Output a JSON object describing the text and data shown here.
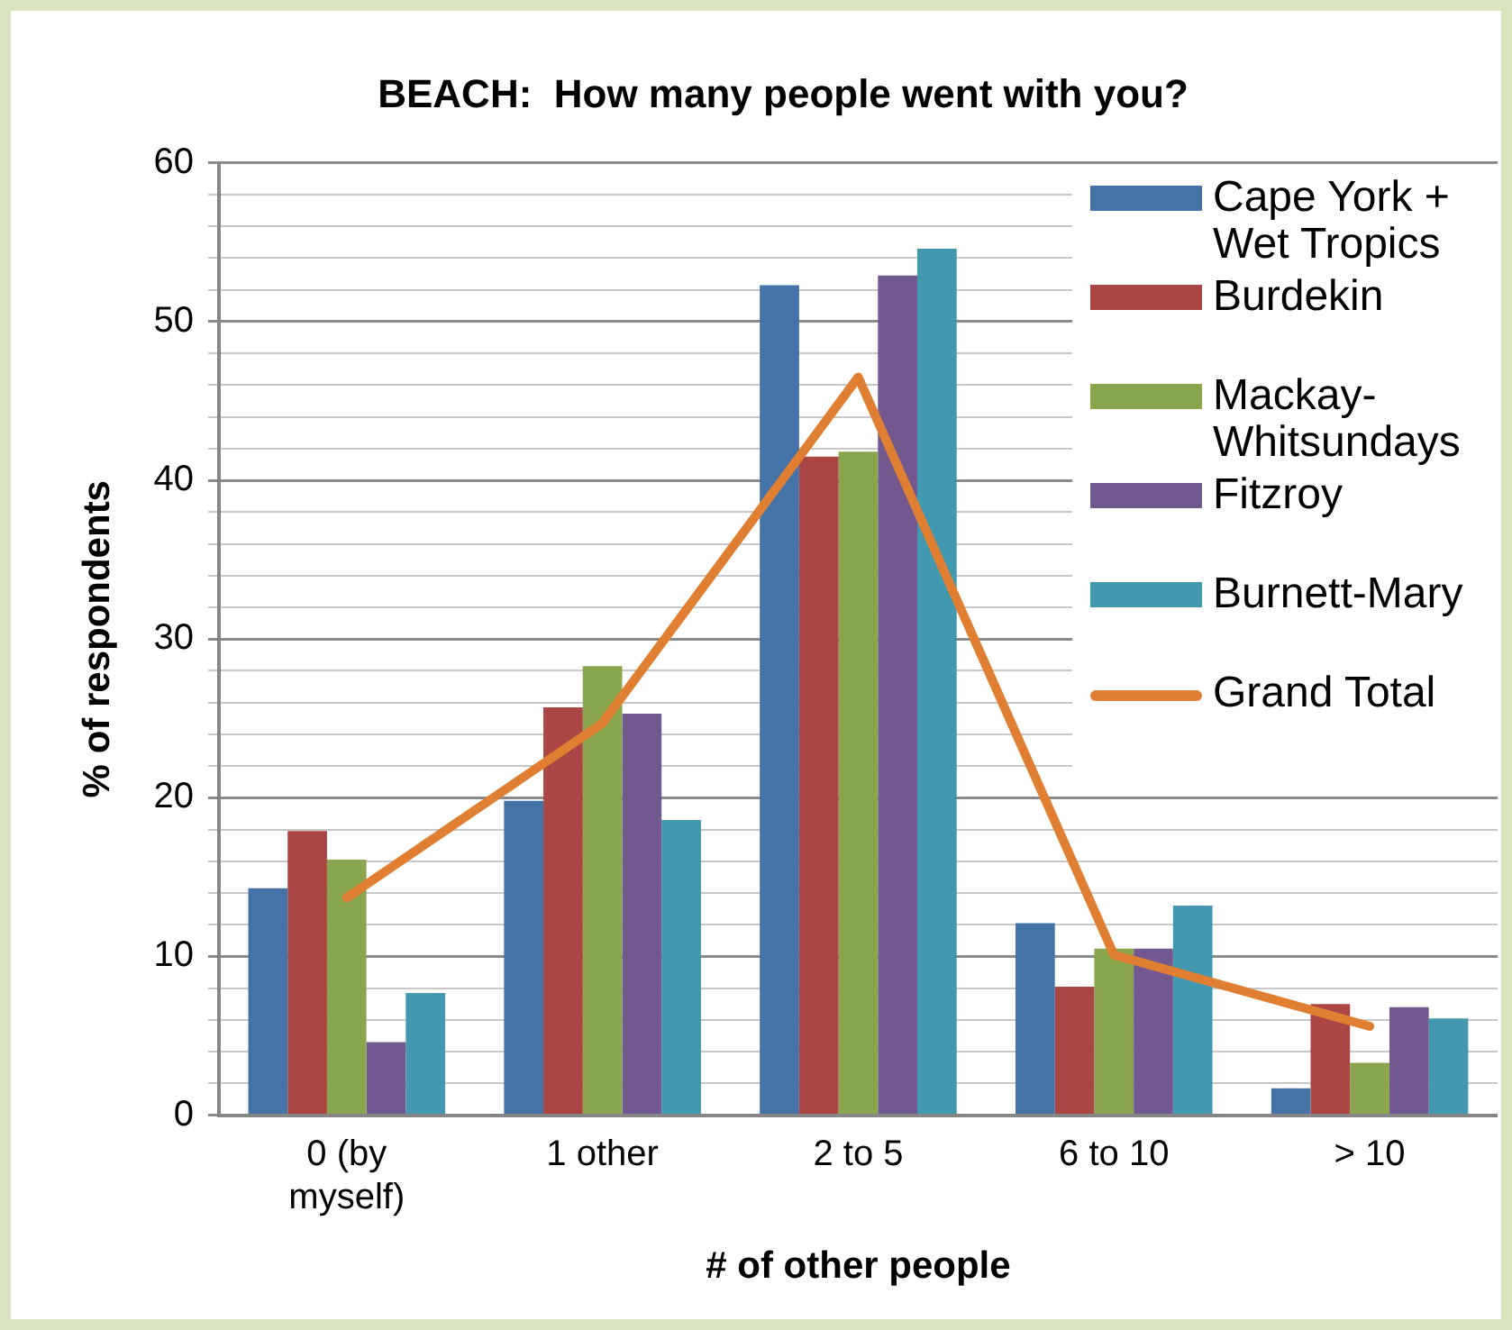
{
  "chart_data": {
    "type": "bar",
    "title": "BEACH:  How many people went with you?",
    "xlabel": "# of other people",
    "ylabel": "% of respondents",
    "categories": [
      "0 (by myself)",
      "1 other",
      "2 to 5",
      "6 to 10",
      "> 10"
    ],
    "series": [
      {
        "name": "Cape York + Wet Tropics",
        "color": "#4572a7",
        "values": [
          14.3,
          19.8,
          52.3,
          12.1,
          1.7
        ]
      },
      {
        "name": "Burdekin",
        "color": "#aa4643",
        "values": [
          17.9,
          25.7,
          41.5,
          8.1,
          7.0
        ]
      },
      {
        "name": "Mackay-Whitsundays",
        "color": "#89a54e",
        "values": [
          16.1,
          28.3,
          41.8,
          10.5,
          3.3
        ]
      },
      {
        "name": "Fitzroy",
        "color": "#71588f",
        "values": [
          4.6,
          25.3,
          52.9,
          10.5,
          6.8
        ]
      },
      {
        "name": "Burnett-Mary",
        "color": "#4198af",
        "values": [
          7.7,
          18.6,
          54.6,
          13.2,
          6.1
        ]
      },
      {
        "name": "Grand Total",
        "color": "#e07f31",
        "type": "line",
        "values": [
          13.7,
          24.7,
          46.5,
          10.1,
          5.6
        ]
      }
    ],
    "ylim": [
      0,
      60
    ],
    "yticks": [
      0,
      {
        "value": 2,
        "label": null
      },
      {
        "value": 4,
        "label": null
      },
      {
        "value": 6,
        "label": null
      },
      {
        "value": 8,
        "label": null
      },
      10,
      {
        "value": 12,
        "label": null
      },
      {
        "value": 14,
        "label": null
      },
      {
        "value": 16,
        "label": null
      },
      {
        "value": 18,
        "label": null
      },
      20,
      {
        "value": 22,
        "label": null
      },
      {
        "value": 24,
        "label": null
      },
      {
        "value": 26,
        "label": null
      },
      {
        "value": 28,
        "label": null
      },
      30,
      {
        "value": 32,
        "label": null
      },
      {
        "value": 34,
        "label": null
      },
      {
        "value": 36,
        "label": null
      },
      {
        "value": 38,
        "label": null
      },
      40,
      {
        "value": 42,
        "label": null
      },
      {
        "value": 44,
        "label": null
      },
      {
        "value": 46,
        "label": null
      },
      {
        "value": 48,
        "label": null
      },
      50,
      {
        "value": 52,
        "label": null
      },
      {
        "value": 54,
        "label": null
      },
      {
        "value": 56,
        "label": null
      },
      {
        "value": 58,
        "label": null
      },
      60
    ],
    "grid": "y",
    "legend": "top right",
    "marker": "none",
    "line_style": "solid"
  }
}
